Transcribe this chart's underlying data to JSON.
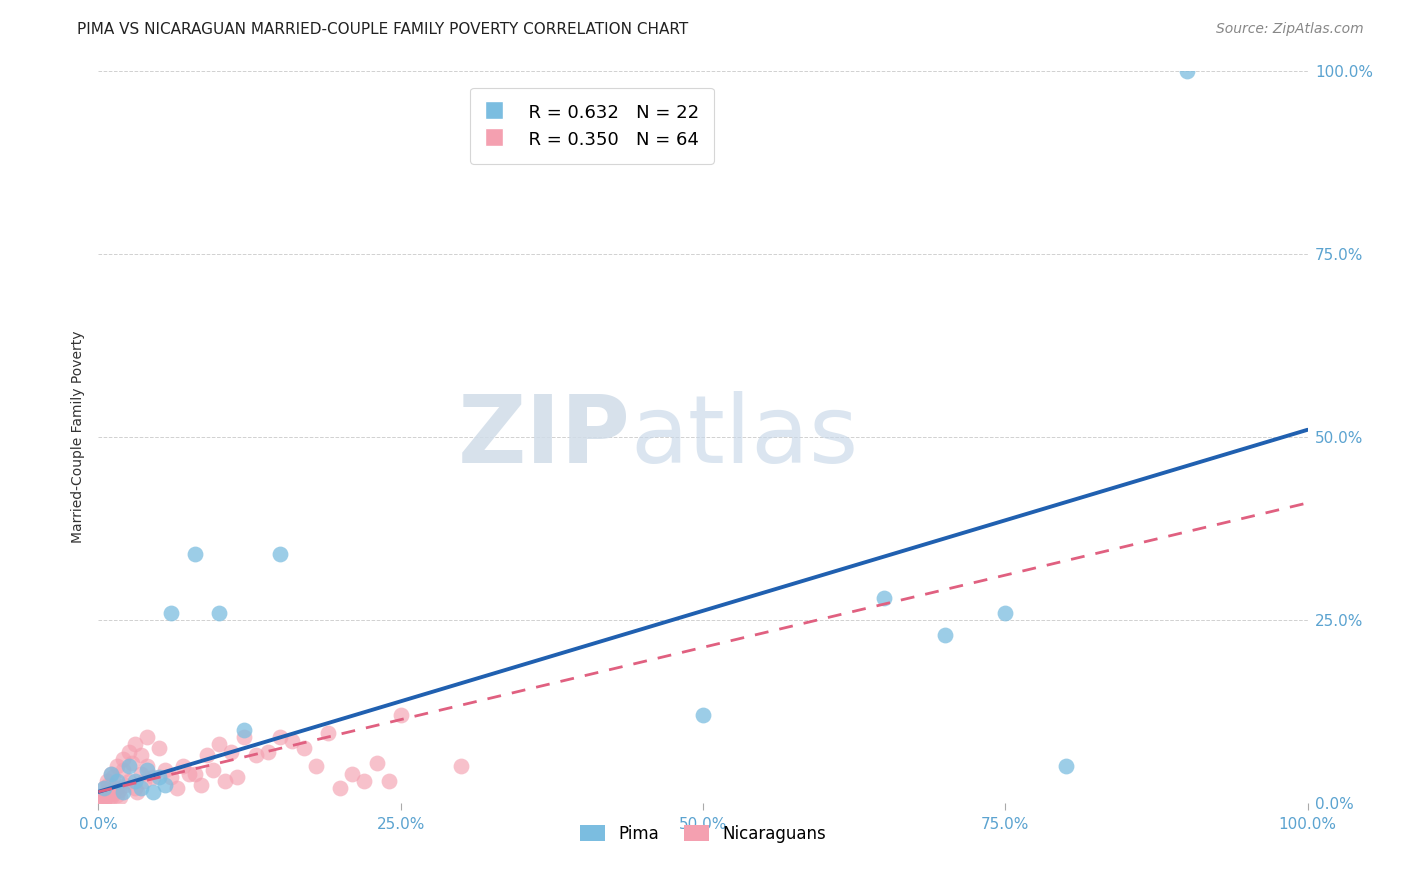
{
  "title": "PIMA VS NICARAGUAN MARRIED-COUPLE FAMILY POVERTY CORRELATION CHART",
  "source": "Source: ZipAtlas.com",
  "ylabel": "Married-Couple Family Poverty",
  "pima_R": 0.632,
  "pima_N": 22,
  "nicaraguan_R": 0.35,
  "nicaraguan_N": 64,
  "pima_color": "#7bbde0",
  "nicaraguan_color": "#f4a0b0",
  "pima_line_color": "#2060b0",
  "nicaraguan_line_color": "#e06080",
  "watermark_zip": "ZIP",
  "watermark_atlas": "atlas",
  "pima_x": [
    0.5,
    1.0,
    1.5,
    2.0,
    2.5,
    3.0,
    3.5,
    4.0,
    4.5,
    5.0,
    5.5,
    6.0,
    8.0,
    10.0,
    12.0,
    15.0,
    50.0,
    65.0,
    70.0,
    75.0,
    80.0,
    90.0
  ],
  "pima_y": [
    2.0,
    4.0,
    3.0,
    1.5,
    5.0,
    3.0,
    2.0,
    4.5,
    1.5,
    3.5,
    2.5,
    26.0,
    34.0,
    26.0,
    10.0,
    34.0,
    12.0,
    28.0,
    23.0,
    26.0,
    5.0,
    100.0
  ],
  "nic_x": [
    0.2,
    0.3,
    0.4,
    0.5,
    0.5,
    0.6,
    0.7,
    0.8,
    0.8,
    0.9,
    1.0,
    1.0,
    1.0,
    1.2,
    1.2,
    1.5,
    1.5,
    1.5,
    1.7,
    1.8,
    2.0,
    2.0,
    2.2,
    2.5,
    2.5,
    2.8,
    3.0,
    3.0,
    3.2,
    3.5,
    3.5,
    3.8,
    4.0,
    4.0,
    4.5,
    5.0,
    5.5,
    6.0,
    6.5,
    7.0,
    7.5,
    8.0,
    8.5,
    9.0,
    9.5,
    10.0,
    10.5,
    11.0,
    11.5,
    12.0,
    13.0,
    14.0,
    15.0,
    16.0,
    17.0,
    18.0,
    19.0,
    20.0,
    21.0,
    22.0,
    23.0,
    24.0,
    25.0,
    30.0
  ],
  "nic_y": [
    0.5,
    1.0,
    0.8,
    2.0,
    0.3,
    1.5,
    3.0,
    2.5,
    0.5,
    1.0,
    2.5,
    4.0,
    0.8,
    1.2,
    3.5,
    2.0,
    5.0,
    1.0,
    1.8,
    0.8,
    4.5,
    6.0,
    2.5,
    7.0,
    3.0,
    5.5,
    2.0,
    8.0,
    1.5,
    6.5,
    4.0,
    3.0,
    9.0,
    5.0,
    3.5,
    7.5,
    4.5,
    3.5,
    2.0,
    5.0,
    4.0,
    4.0,
    2.5,
    6.5,
    4.5,
    8.0,
    3.0,
    7.0,
    3.5,
    9.0,
    6.5,
    7.0,
    9.0,
    8.5,
    7.5,
    5.0,
    9.5,
    2.0,
    4.0,
    3.0,
    5.5,
    3.0,
    12.0,
    5.0
  ],
  "pima_line_x0": 0,
  "pima_line_y0": 1.5,
  "pima_line_x1": 100,
  "pima_line_y1": 51.0,
  "nic_line_x0": 0,
  "nic_line_y0": 1.5,
  "nic_line_x1": 100,
  "nic_line_y1": 41.0,
  "xlim": [
    0,
    100
  ],
  "ylim": [
    0,
    100
  ],
  "xticks": [
    0,
    25,
    50,
    75,
    100
  ],
  "yticks": [
    0,
    25,
    50,
    75,
    100
  ],
  "tick_color": "#5ba3d0",
  "title_fontsize": 11,
  "source_fontsize": 10,
  "axis_label_fontsize": 10,
  "tick_fontsize": 11,
  "legend_fontsize": 13
}
